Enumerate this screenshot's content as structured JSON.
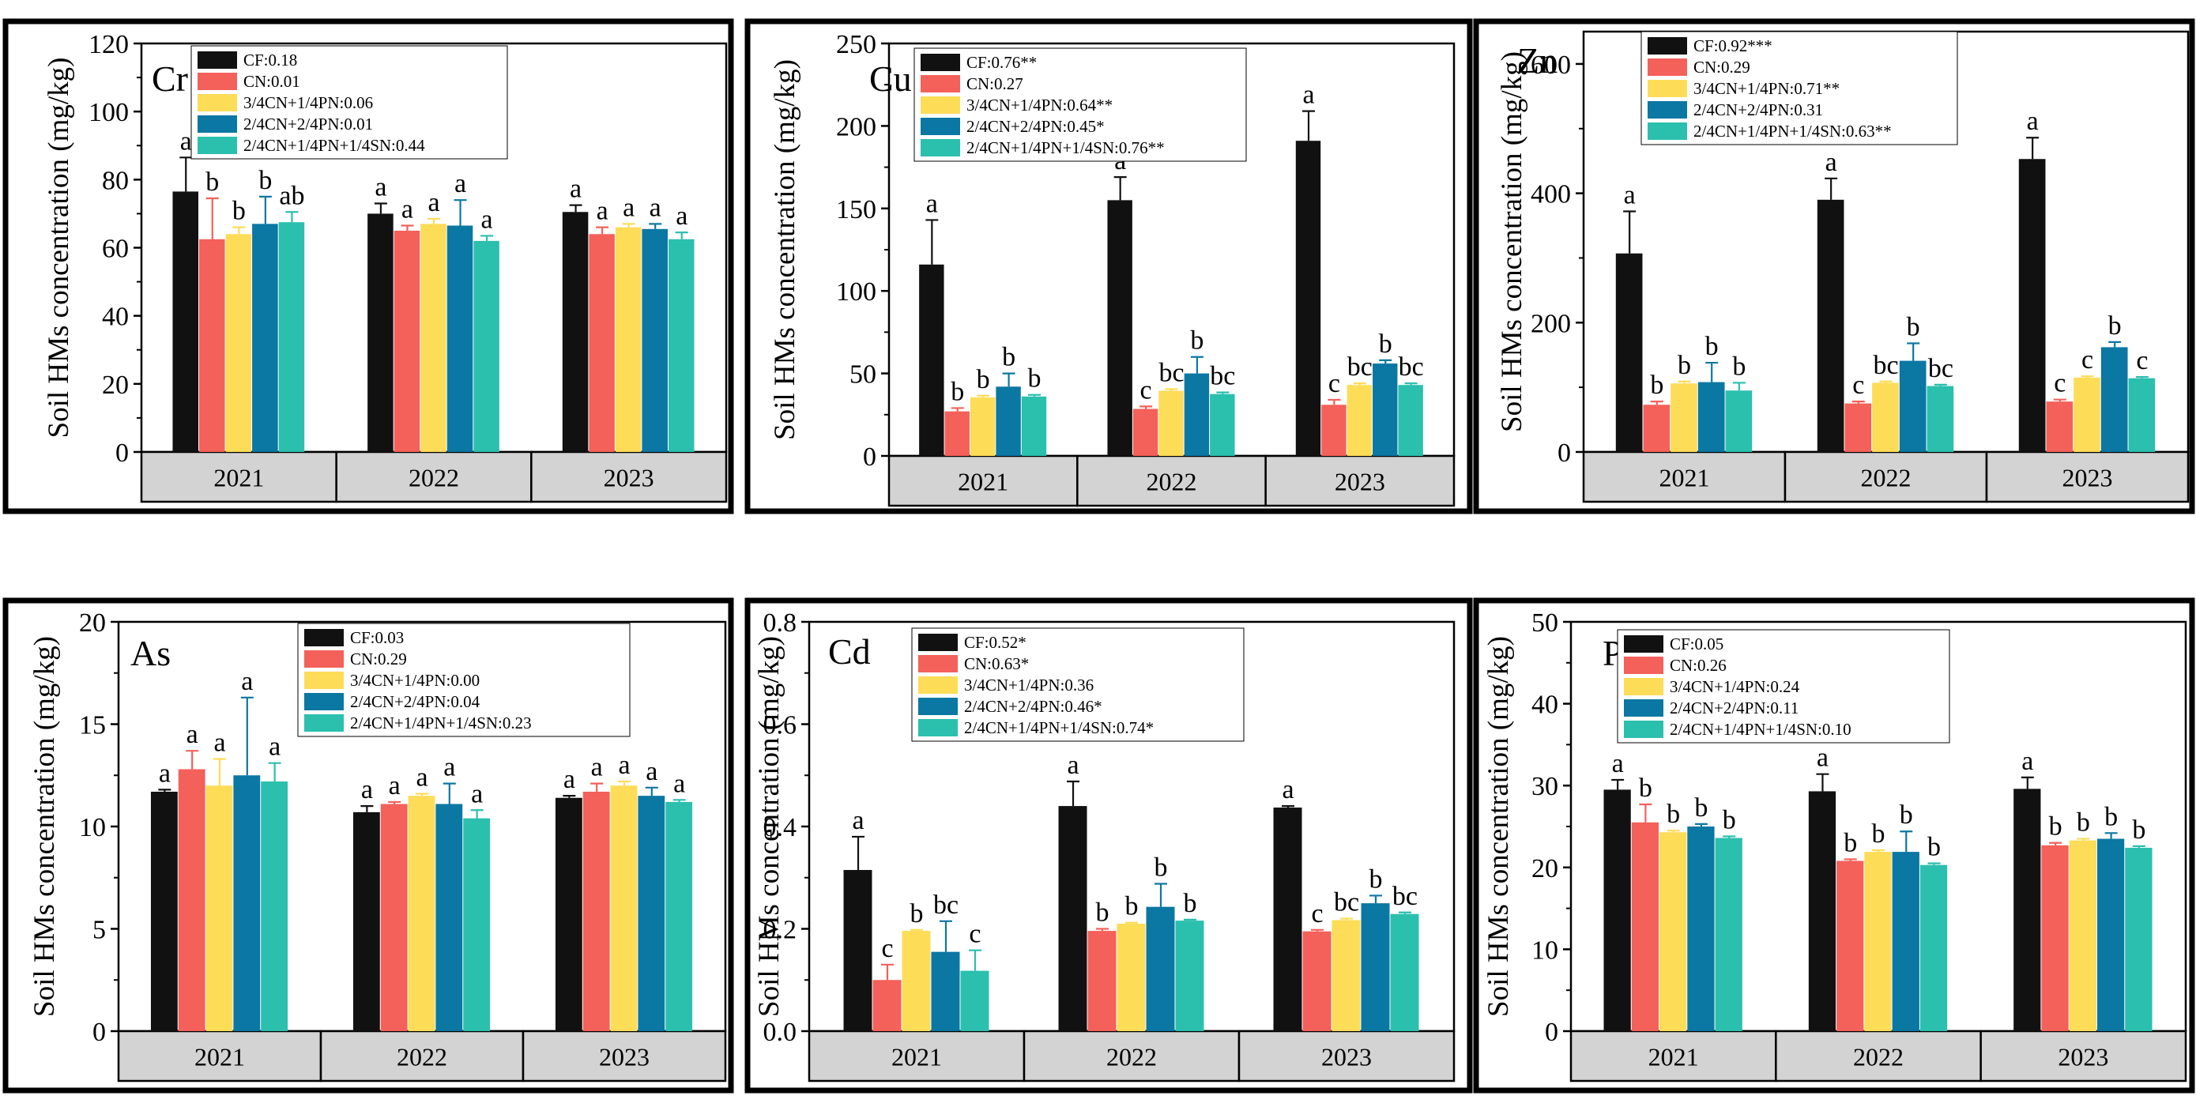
{
  "figure": {
    "ylabel": "Soil HMs concentration (mg/kg)",
    "years": [
      "2021",
      "2022",
      "2023"
    ],
    "colors": [
      "#111111",
      "#f4605a",
      "#fddc58",
      "#0b77a3",
      "#2bbfae"
    ]
  },
  "chart_data": [
    {
      "type": "bar",
      "title": "Cr",
      "ylabel": "Soil HMs concentration (mg/kg)",
      "ylim": [
        0,
        120
      ],
      "yticks": [
        0,
        20,
        40,
        60,
        80,
        100,
        120
      ],
      "categories": [
        "2021",
        "2022",
        "2023"
      ],
      "legend": [
        "CF:0.18",
        "CN:0.01",
        "3/4CN+1/4PN:0.06",
        "2/4CN+2/4PN:0.01",
        "2/4CN+1/4PN+1/4SN:0.44"
      ],
      "series": [
        {
          "name": "CF",
          "values": [
            76.5,
            70,
            70.5
          ],
          "errors": [
            10,
            3,
            2
          ],
          "letters": [
            "a",
            "a",
            "a"
          ]
        },
        {
          "name": "CN",
          "values": [
            62.5,
            65,
            64
          ],
          "errors": [
            12,
            1.5,
            2
          ],
          "letters": [
            "b",
            "a",
            "a"
          ]
        },
        {
          "name": "3/4CN+1/4PN",
          "values": [
            64,
            67,
            66
          ],
          "errors": [
            2,
            1.5,
            1
          ],
          "letters": [
            "b",
            "a",
            "a"
          ]
        },
        {
          "name": "2/4CN+2/4PN",
          "values": [
            67,
            66.5,
            65.5
          ],
          "errors": [
            8,
            7.5,
            1.5
          ],
          "letters": [
            "b",
            "a",
            "a"
          ]
        },
        {
          "name": "2/4CN+1/4PN+1/4SN",
          "values": [
            67.5,
            62,
            62.5
          ],
          "errors": [
            3,
            1.5,
            2
          ],
          "letters": [
            "ab",
            "a",
            "a"
          ]
        }
      ]
    },
    {
      "type": "bar",
      "title": "Cu",
      "ylabel": "Soil HMs concentration (mg/kg)",
      "ylim": [
        0,
        250
      ],
      "yticks": [
        0,
        50,
        100,
        150,
        200,
        250
      ],
      "categories": [
        "2021",
        "2022",
        "2023"
      ],
      "legend": [
        "CF:0.76**",
        "CN:0.27",
        "3/4CN+1/4PN:0.64**",
        "2/4CN+2/4PN:0.45*",
        "2/4CN+1/4PN+1/4SN:0.76**"
      ],
      "series": [
        {
          "name": "CF",
          "values": [
            116,
            155,
            191
          ],
          "errors": [
            27,
            14,
            18
          ],
          "letters": [
            "a",
            "a",
            "a"
          ]
        },
        {
          "name": "CN",
          "values": [
            27,
            28.5,
            31
          ],
          "errors": [
            2,
            1.5,
            3
          ],
          "letters": [
            "b",
            "c",
            "c"
          ]
        },
        {
          "name": "3/4CN+1/4PN",
          "values": [
            35.5,
            39.5,
            43
          ],
          "errors": [
            1,
            1,
            1
          ],
          "letters": [
            "b",
            "bc",
            "bc"
          ]
        },
        {
          "name": "2/4CN+2/4PN",
          "values": [
            42,
            50,
            56
          ],
          "errors": [
            8,
            10,
            2
          ],
          "letters": [
            "b",
            "b",
            "b"
          ]
        },
        {
          "name": "2/4CN+1/4PN+1/4SN",
          "values": [
            36,
            37.5,
            43
          ],
          "errors": [
            1,
            1,
            1
          ],
          "letters": [
            "b",
            "bc",
            "bc"
          ]
        }
      ]
    },
    {
      "type": "bar",
      "title": "Zn",
      "ylabel": "Soil HMs concentration (mg/kg)",
      "ylim": [
        0,
        650
      ],
      "yticks": [
        0,
        200,
        400,
        600
      ],
      "categories": [
        "2021",
        "2022",
        "2023"
      ],
      "legend": [
        "CF:0.92***",
        "CN:0.29",
        "3/4CN+1/4PN:0.71**",
        "2/4CN+2/4PN:0.31",
        "2/4CN+1/4PN+1/4SN:0.63**"
      ],
      "series": [
        {
          "name": "CF",
          "values": [
            307,
            390,
            453
          ],
          "errors": [
            65,
            33,
            33
          ],
          "letters": [
            "a",
            "a",
            "a"
          ]
        },
        {
          "name": "CN",
          "values": [
            73,
            75,
            78
          ],
          "errors": [
            5,
            3,
            3
          ],
          "letters": [
            "b",
            "c",
            "c"
          ]
        },
        {
          "name": "3/4CN+1/4PN",
          "values": [
            106,
            107,
            115
          ],
          "errors": [
            3,
            2,
            2
          ],
          "letters": [
            "b",
            "bc",
            "c"
          ]
        },
        {
          "name": "2/4CN+2/4PN",
          "values": [
            108,
            141,
            162
          ],
          "errors": [
            30,
            27,
            8
          ],
          "letters": [
            "b",
            "b",
            "b"
          ]
        },
        {
          "name": "2/4CN+1/4PN+1/4SN",
          "values": [
            95,
            102,
            114
          ],
          "errors": [
            12,
            2,
            2
          ],
          "letters": [
            "b",
            "bc",
            "c"
          ]
        }
      ]
    },
    {
      "type": "bar",
      "title": "As",
      "ylabel": "Soil HMs concentration (mg/kg)",
      "ylim": [
        0,
        20
      ],
      "yticks": [
        0,
        5,
        10,
        15,
        20
      ],
      "categories": [
        "2021",
        "2022",
        "2023"
      ],
      "legend": [
        "CF:0.03",
        "CN:0.29",
        "3/4CN+1/4PN:0.00",
        "2/4CN+2/4PN:0.04",
        "2/4CN+1/4PN+1/4SN:0.23"
      ],
      "series": [
        {
          "name": "CF",
          "values": [
            11.7,
            10.7,
            11.4
          ],
          "errors": [
            0.1,
            0.3,
            0.1
          ],
          "letters": [
            "a",
            "a",
            "a"
          ]
        },
        {
          "name": "CN",
          "values": [
            12.8,
            11.1,
            11.7
          ],
          "errors": [
            0.9,
            0.1,
            0.4
          ],
          "letters": [
            "a",
            "a",
            "a"
          ]
        },
        {
          "name": "3/4CN+1/4PN",
          "values": [
            12.0,
            11.5,
            12.0
          ],
          "errors": [
            1.3,
            0.1,
            0.2
          ],
          "letters": [
            "a",
            "a",
            "a"
          ]
        },
        {
          "name": "2/4CN+2/4PN",
          "values": [
            12.5,
            11.1,
            11.5
          ],
          "errors": [
            3.8,
            1.0,
            0.4
          ],
          "letters": [
            "a",
            "a",
            "a"
          ]
        },
        {
          "name": "2/4CN+1/4PN+1/4SN",
          "values": [
            12.2,
            10.4,
            11.2
          ],
          "errors": [
            0.9,
            0.4,
            0.1
          ],
          "letters": [
            "a",
            "a",
            "a"
          ]
        }
      ]
    },
    {
      "type": "bar",
      "title": "Cd",
      "ylabel": "Soil HMs concentration (mg/kg)",
      "ylim": [
        0,
        0.8
      ],
      "yticks": [
        0.0,
        0.2,
        0.4,
        0.6,
        0.8
      ],
      "categories": [
        "2021",
        "2022",
        "2023"
      ],
      "legend": [
        "CF:0.52*",
        "CN:0.63*",
        "3/4CN+1/4PN:0.36",
        "2/4CN+2/4PN:0.46*",
        "2/4CN+1/4PN+1/4SN:0.74*"
      ],
      "series": [
        {
          "name": "CF",
          "values": [
            0.315,
            0.44,
            0.437
          ],
          "errors": [
            0.065,
            0.048,
            0.003
          ],
          "letters": [
            "a",
            "a",
            "a"
          ]
        },
        {
          "name": "CN",
          "values": [
            0.1,
            0.196,
            0.195
          ],
          "errors": [
            0.03,
            0.004,
            0.003
          ],
          "letters": [
            "c",
            "b",
            "c"
          ]
        },
        {
          "name": "3/4CN+1/4PN",
          "values": [
            0.196,
            0.21,
            0.217
          ],
          "errors": [
            0.002,
            0.002,
            0.003
          ],
          "letters": [
            "b",
            "b",
            "bc"
          ]
        },
        {
          "name": "2/4CN+2/4PN",
          "values": [
            0.155,
            0.243,
            0.25
          ],
          "errors": [
            0.06,
            0.045,
            0.015
          ],
          "letters": [
            "bc",
            "b",
            "b"
          ]
        },
        {
          "name": "2/4CN+1/4PN+1/4SN",
          "values": [
            0.118,
            0.216,
            0.229
          ],
          "errors": [
            0.04,
            0.002,
            0.003
          ],
          "letters": [
            "c",
            "b",
            "bc"
          ]
        }
      ]
    },
    {
      "type": "bar",
      "title": "Pb",
      "ylabel": "Soil HMs concentration (mg/kg)",
      "ylim": [
        0,
        50
      ],
      "yticks": [
        0,
        10,
        20,
        30,
        40,
        50
      ],
      "categories": [
        "2021",
        "2022",
        "2023"
      ],
      "legend": [
        "CF:0.05",
        "CN:0.26",
        "3/4CN+1/4PN:0.24",
        "2/4CN+2/4PN:0.11",
        "2/4CN+1/4PN+1/4SN:0.10"
      ],
      "series": [
        {
          "name": "CF",
          "values": [
            29.5,
            29.3,
            29.6
          ],
          "errors": [
            1.2,
            2.1,
            1.4
          ],
          "letters": [
            "a",
            "a",
            "a"
          ]
        },
        {
          "name": "CN",
          "values": [
            25.5,
            20.8,
            22.7
          ],
          "errors": [
            2.2,
            0.2,
            0.3
          ],
          "letters": [
            "b",
            "b",
            "b"
          ]
        },
        {
          "name": "3/4CN+1/4PN",
          "values": [
            24.3,
            21.9,
            23.3
          ],
          "errors": [
            0.2,
            0.2,
            0.2
          ],
          "letters": [
            "b",
            "b",
            "b"
          ]
        },
        {
          "name": "2/4CN+2/4PN",
          "values": [
            25.0,
            21.9,
            23.5
          ],
          "errors": [
            0.3,
            2.5,
            0.7
          ],
          "letters": [
            "b",
            "b",
            "b"
          ]
        },
        {
          "name": "2/4CN+1/4PN+1/4SN",
          "values": [
            23.6,
            20.3,
            22.4
          ],
          "errors": [
            0.2,
            0.2,
            0.2
          ],
          "letters": [
            "b",
            "b",
            "b"
          ]
        }
      ]
    }
  ]
}
